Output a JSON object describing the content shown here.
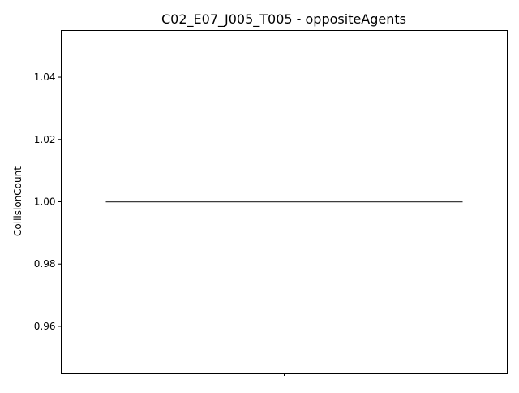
{
  "chart_data": {
    "type": "box",
    "title": "C02_E07_J005_T005 - oppositeAgents",
    "xlabel": "",
    "ylabel": "CollisionCount",
    "ylim": [
      0.945,
      1.055
    ],
    "yticks": [
      0.96,
      0.98,
      1.0,
      1.02,
      1.04
    ],
    "ytick_labels": [
      "0.96",
      "0.98",
      "1.00",
      "1.02",
      "1.04"
    ],
    "categories": [
      ""
    ],
    "series": [
      {
        "values": [
          1.0
        ],
        "median": 1.0,
        "q1": 1.0,
        "q3": 1.0,
        "whisker_low": 1.0,
        "whisker_high": 1.0
      }
    ],
    "grid": false,
    "colors": {
      "line": "#3d3d3d",
      "axis": "#000000",
      "text": "#000000"
    }
  }
}
